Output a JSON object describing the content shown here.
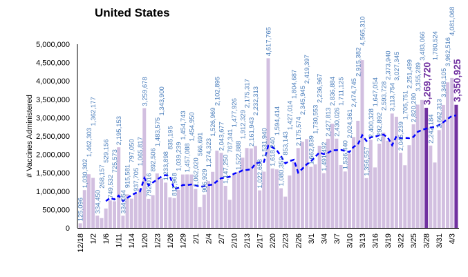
{
  "chart_data": {
    "type": "bar",
    "title": "United States",
    "ylabel": "# Vaccines Administered",
    "xlabel": "",
    "ylim": [
      0,
      5000000
    ],
    "yticks": [
      0,
      500000,
      1000000,
      1500000,
      2000000,
      2500000,
      3000000,
      3500000,
      4000000,
      4500000,
      5000000
    ],
    "ytick_labels": [
      "0",
      "500,000",
      "1,000,000",
      "1,500,000",
      "2,000,000",
      "2,500,000",
      "3,000,000",
      "3,500,000",
      "4,000,000",
      "4,500,000",
      "5,000,000"
    ],
    "grid": false,
    "legend": "none",
    "categories": [
      "12/18",
      "",
      "",
      "1/2",
      "",
      "",
      "1/6",
      "",
      "",
      "1/11",
      "",
      "",
      "1/14",
      "",
      "",
      "1/20",
      "",
      "",
      "1/23",
      "",
      "",
      "1/26",
      "",
      "",
      "1/29",
      "",
      "",
      "2/1",
      "",
      "",
      "2/4",
      "",
      "",
      "2/7",
      "",
      "",
      "2/10",
      "",
      "",
      "2/13",
      "",
      "",
      "2/17",
      "",
      "",
      "2/20",
      "",
      "",
      "2/23",
      "",
      "",
      "2/26",
      "",
      "",
      "3/1",
      "",
      "",
      "3/4",
      "",
      "",
      "3/7",
      "",
      "",
      "3/10",
      "",
      "",
      "3/13",
      "",
      "",
      "3/16",
      "",
      "",
      "3/19",
      "",
      "",
      "3/22",
      "",
      "",
      "3/25",
      "",
      "",
      "3/28",
      "",
      "",
      "3/31",
      "",
      "",
      "4/3",
      ""
    ],
    "values": [
      125096,
      1030302,
      1462303,
      1362177,
      334450,
      268157,
      529156,
      749532,
      725573,
      2195153,
      334054,
      915581,
      797050,
      937705,
      1065817,
      3259678,
      792016,
      892506,
      1483575,
      1343900,
      1233898,
      835195,
      811968,
      1039239,
      1454743,
      1457088,
      1454950,
      1062020,
      566691,
      906929,
      1274323,
      1526969,
      2102895,
      2043677,
      1147250,
      767341,
      1477926,
      1522888,
      1912329,
      2175317,
      2161943,
      2232313,
      1022658,
      1531940,
      4617765,
      1618240,
      1594414,
      1080359,
      853143,
      1427014,
      1804687,
      2175574,
      2345945,
      2419397,
      1662839,
      1730553,
      2236967,
      1491492,
      2427813,
      2836884,
      2430026,
      1711125,
      1536440,
      2024361,
      2474745,
      2915382,
      4565310,
      1356557,
      2400328,
      1647054,
      2292892,
      2593728,
      2373940,
      3113754,
      3027345,
      2045239,
      1705751,
      2251499,
      2820280,
      3355289,
      3483066,
      3269720,
      2242184,
      1780524,
      2662313,
      3348105,
      3962516,
      4081068,
      3350925
    ],
    "highlighted": [
      "3,269,720",
      "3,350,925"
    ],
    "series": [
      {
        "type": "bar",
        "color": "#d2bfe0",
        "highlight_color": "#7030a0"
      },
      {
        "type": "line",
        "style": "dashed",
        "color": "#0000ff",
        "window": 7
      }
    ],
    "value_label_color": "#4f81bd"
  }
}
